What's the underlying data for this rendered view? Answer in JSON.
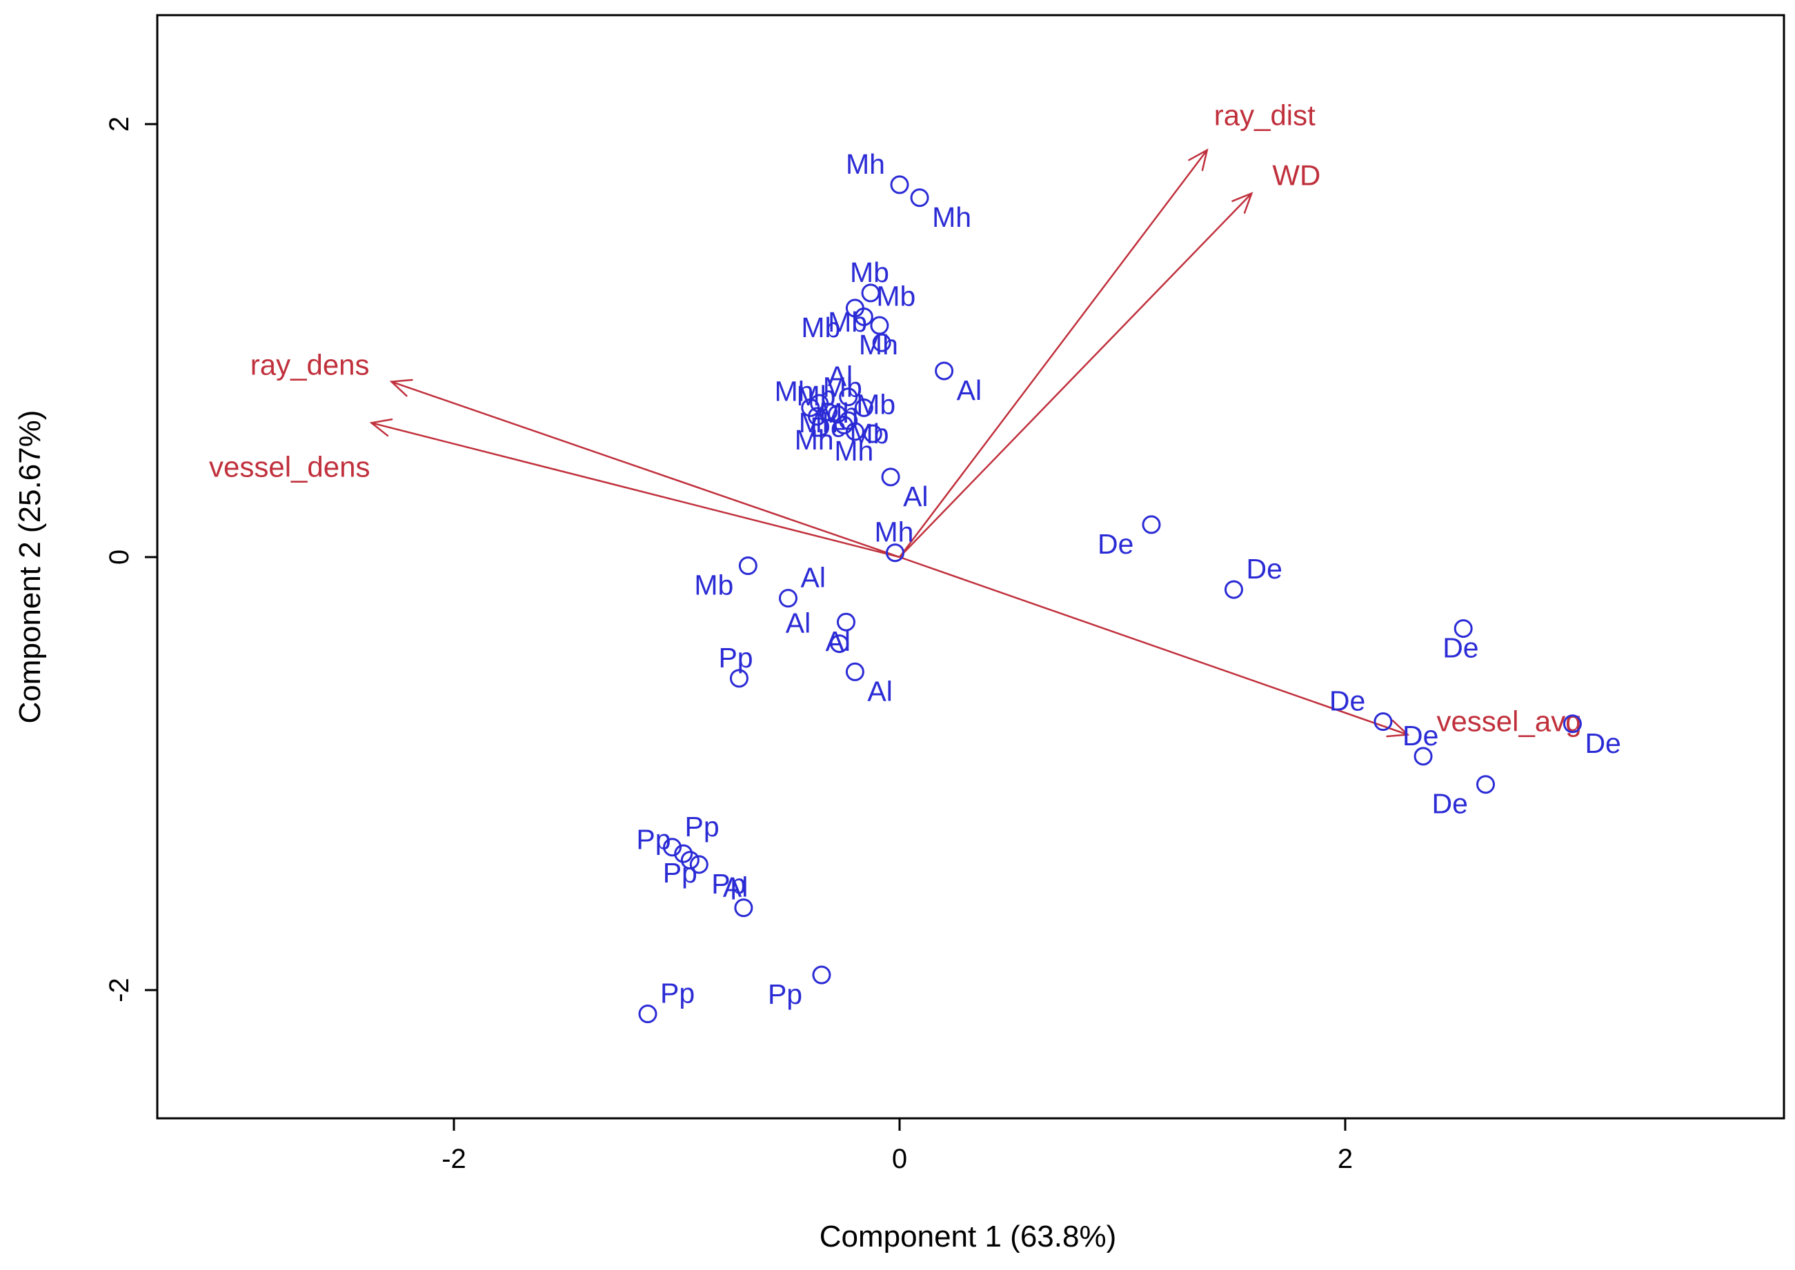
{
  "chart_data": {
    "type": "scatter",
    "subtype": "pca-biplot",
    "title": "",
    "xlabel": "Component 1 (63.8%)",
    "ylabel": "Component 2 (25.67%)",
    "xlim": [
      -3.3,
      4.0
    ],
    "ylim": [
      -2.6,
      2.55
    ],
    "xticks": [
      -2,
      0,
      2
    ],
    "yticks": [
      -2,
      0,
      2
    ],
    "grid": false,
    "colors": {
      "points": "#2b2bd6",
      "vectors": "#c0303c",
      "axes": "#000000"
    },
    "points": [
      {
        "label": "Mh",
        "x": 0.0,
        "y": 1.72
      },
      {
        "label": "Mh",
        "x": 0.09,
        "y": 1.66
      },
      {
        "label": "Mb",
        "x": -0.13,
        "y": 1.22
      },
      {
        "label": "Mb",
        "x": -0.2,
        "y": 1.15
      },
      {
        "label": "Mb",
        "x": -0.16,
        "y": 1.11
      },
      {
        "label": "Mh",
        "x": -0.09,
        "y": 1.07
      },
      {
        "label": "Mb",
        "x": -0.08,
        "y": 0.99
      },
      {
        "label": "Al",
        "x": 0.2,
        "y": 0.86
      },
      {
        "label": "Al",
        "x": -0.23,
        "y": 0.74
      },
      {
        "label": "De",
        "x": -0.16,
        "y": 0.69
      },
      {
        "label": "Mb",
        "x": -0.4,
        "y": 0.69
      },
      {
        "label": "Mh",
        "x": -0.36,
        "y": 0.71
      },
      {
        "label": "Mh",
        "x": -0.32,
        "y": 0.67
      },
      {
        "label": "Mb",
        "x": -0.28,
        "y": 0.66
      },
      {
        "label": "Mb",
        "x": -0.37,
        "y": 0.65
      },
      {
        "label": "Mh",
        "x": -0.23,
        "y": 0.63
      },
      {
        "label": "Mb",
        "x": -0.25,
        "y": 0.61
      },
      {
        "label": "Mh",
        "x": -0.2,
        "y": 0.58
      },
      {
        "label": "Mh",
        "x": -0.12,
        "y": 0.57
      },
      {
        "label": "Al",
        "x": -0.04,
        "y": 0.37
      },
      {
        "label": "Mh",
        "x": -0.02,
        "y": 0.02
      },
      {
        "label": "Mb",
        "x": -0.68,
        "y": -0.04
      },
      {
        "label": "Al",
        "x": -0.5,
        "y": -0.19
      },
      {
        "label": "Al",
        "x": -0.24,
        "y": -0.3
      },
      {
        "label": "Al",
        "x": -0.27,
        "y": -0.4
      },
      {
        "label": "Al",
        "x": -0.2,
        "y": -0.53
      },
      {
        "label": "Pp",
        "x": -0.72,
        "y": -0.56
      },
      {
        "label": "De",
        "x": 1.13,
        "y": 0.15
      },
      {
        "label": "De",
        "x": 1.5,
        "y": -0.15
      },
      {
        "label": "De",
        "x": 2.53,
        "y": -0.33
      },
      {
        "label": "De",
        "x": 2.17,
        "y": -0.76
      },
      {
        "label": "De",
        "x": 3.02,
        "y": -0.77
      },
      {
        "label": "De",
        "x": 2.35,
        "y": -0.92
      },
      {
        "label": "De",
        "x": 2.63,
        "y": -1.05
      },
      {
        "label": "Pp",
        "x": -1.02,
        "y": -1.34
      },
      {
        "label": "Pp",
        "x": -0.97,
        "y": -1.37
      },
      {
        "label": "Pp",
        "x": -0.94,
        "y": -1.4
      },
      {
        "label": "Pp",
        "x": -0.9,
        "y": -1.42
      },
      {
        "label": "Al",
        "x": -0.7,
        "y": -1.62
      },
      {
        "label": "Pp",
        "x": -0.35,
        "y": -1.93
      },
      {
        "label": "Pp",
        "x": -1.13,
        "y": -2.11
      }
    ],
    "vectors": [
      {
        "name": "ray_dist",
        "x": 1.38,
        "y": 1.88
      },
      {
        "name": "WD",
        "x": 1.58,
        "y": 1.68
      },
      {
        "name": "ray_dens",
        "x": -2.28,
        "y": 0.81
      },
      {
        "name": "vessel_dens",
        "x": -2.37,
        "y": 0.62
      },
      {
        "name": "vessel_avg",
        "x": 2.28,
        "y": -0.82
      }
    ]
  }
}
